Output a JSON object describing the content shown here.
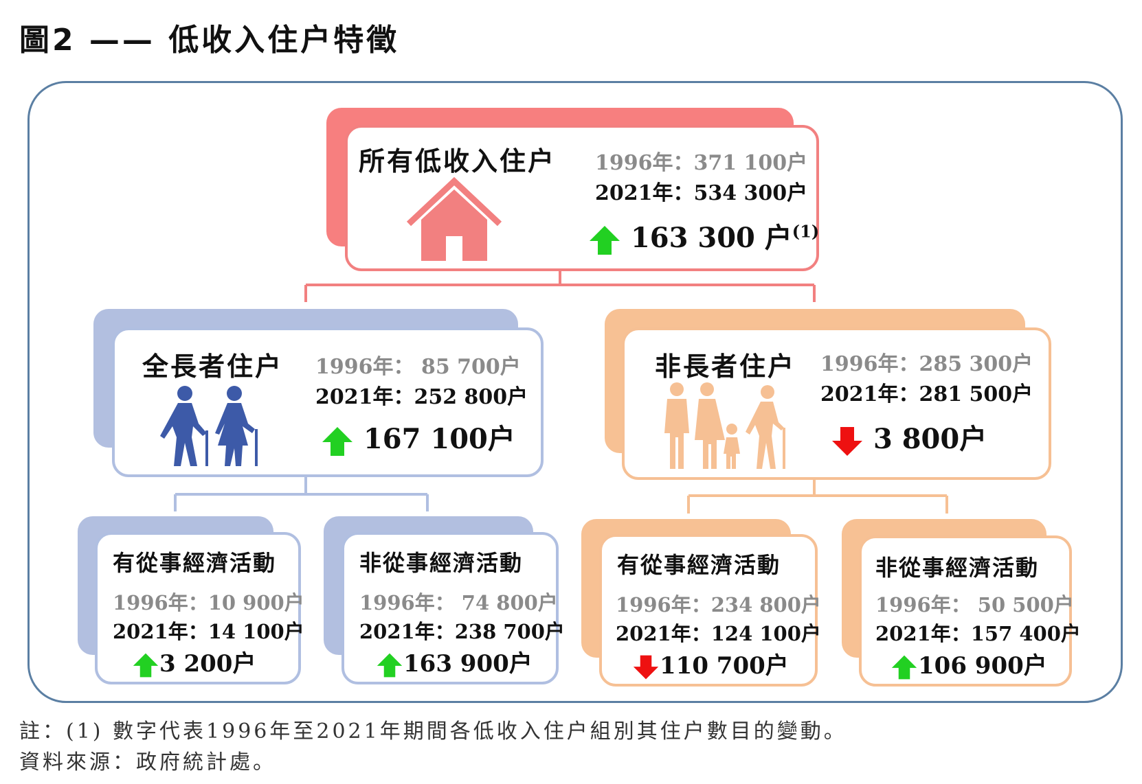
{
  "title": "圖2 —— 低收入住户特徵",
  "colors": {
    "red": "#f77f7f",
    "blue": "#b0bfe1",
    "orange": "#f6c094",
    "up_arrow": "#22d022",
    "down_arrow": "#ee1111"
  },
  "top": {
    "name": "所有低收入住户",
    "y1996": "1996年：371 100户",
    "y2021": "2021年：534 300户",
    "change": "163 300 户",
    "change_note": "(1)",
    "direction": "up",
    "icon": "house-icon"
  },
  "elderly": {
    "name": "全長者住户",
    "y1996": "1996年：  85 700户",
    "y2021": "2021年：252 800户",
    "change": "167 100户",
    "direction": "up",
    "icon": "elderly-couple-icon",
    "sub": [
      {
        "name": "有從事經濟活動",
        "y1996": "1996年：10 900户",
        "y2021": "2021年：14 100户",
        "change": "3 200户",
        "direction": "up"
      },
      {
        "name": "非從事經濟活動",
        "y1996": "1996年：  74 800户",
        "y2021": "2021年：238 700户",
        "change": "163 900户",
        "direction": "up"
      }
    ]
  },
  "nonelderly": {
    "name": "非長者住户",
    "y1996": "1996年：285 300户",
    "y2021": "2021年：281 500户",
    "change": "3 800户",
    "direction": "down",
    "icon": "family-icon",
    "sub": [
      {
        "name": "有從事經濟活動",
        "y1996": "1996年：234 800户",
        "y2021": "2021年：124 100户",
        "change": "110 700户",
        "direction": "down"
      },
      {
        "name": "非從事經濟活動",
        "y1996": "1996年：  50 500户",
        "y2021": "2021年：157 400户",
        "change": "106 900户",
        "direction": "up"
      }
    ]
  },
  "notes": {
    "note1": "註：(1) 數字代表1996年至2021年期間各低收入住户組別其住户數目的變動。",
    "source": "資料來源：政府統計處。"
  }
}
